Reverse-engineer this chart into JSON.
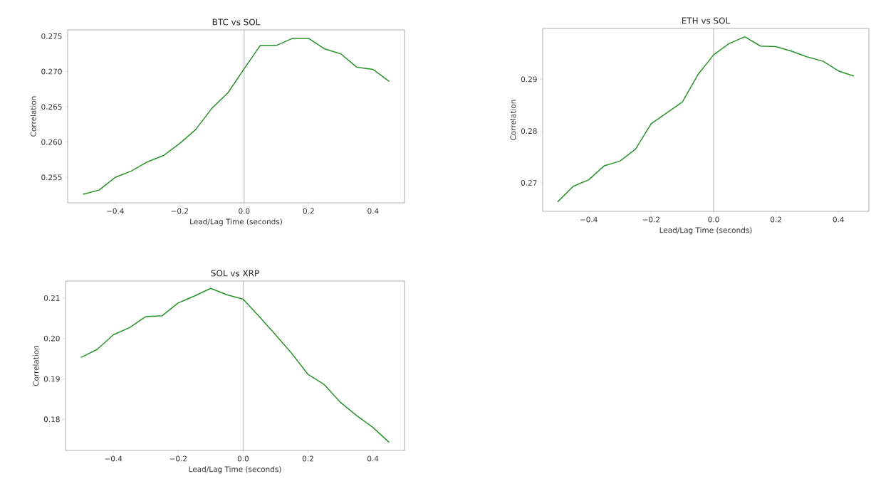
{
  "chart_data": [
    {
      "type": "line",
      "title": "BTC vs SOL",
      "xlabel": "Lead/Lag Time (seconds)",
      "ylabel": "Correlation",
      "x": [
        -0.5,
        -0.45,
        -0.4,
        -0.35,
        -0.3,
        -0.25,
        -0.2,
        -0.15,
        -0.1,
        -0.05,
        0.0,
        0.05,
        0.1,
        0.15,
        0.2,
        0.25,
        0.3,
        0.35,
        0.4,
        0.45
      ],
      "series": [
        {
          "color": "#279427",
          "values": [
            0.2526,
            0.2532,
            0.255,
            0.2559,
            0.2572,
            0.2581,
            0.2598,
            0.2618,
            0.2648,
            0.267,
            0.2704,
            0.2737,
            0.2737,
            0.2747,
            0.2747,
            0.2732,
            0.2725,
            0.2706,
            0.2703,
            0.2686
          ]
        }
      ],
      "xlim": [
        -0.5475,
        0.4975
      ],
      "ylim": [
        0.2514,
        0.2759
      ],
      "xticks": [
        {
          "value": -0.4,
          "label": "−0.4"
        },
        {
          "value": -0.2,
          "label": "−0.2"
        },
        {
          "value": 0,
          "label": "0.0"
        },
        {
          "value": 0.2,
          "label": "0.2"
        },
        {
          "value": 0.4,
          "label": "0.4"
        }
      ],
      "yticks": [
        0.255,
        {
          "value": 0.26,
          "label": "0.260"
        },
        0.265,
        {
          "value": 0.27,
          "label": "0.270"
        },
        0.275
      ],
      "ref_lines": [
        {
          "axis": "x",
          "value": 0,
          "color": "#808080"
        }
      ]
    },
    {
      "type": "line",
      "title": "ETH vs SOL",
      "xlabel": "Lead/Lag Time (seconds)",
      "ylabel": "Correlation",
      "x": [
        -0.5,
        -0.45,
        -0.4,
        -0.35,
        -0.3,
        -0.25,
        -0.2,
        -0.15,
        -0.1,
        -0.05,
        0.0,
        0.05,
        0.1,
        0.15,
        0.2,
        0.25,
        0.3,
        0.35,
        0.4,
        0.45
      ],
      "series": [
        {
          "color": "#279427",
          "values": [
            0.2663,
            0.2693,
            0.2706,
            0.2733,
            0.2742,
            0.2765,
            0.2814,
            0.2835,
            0.2856,
            0.2909,
            0.2947,
            0.2969,
            0.2982,
            0.2964,
            0.2963,
            0.2954,
            0.2943,
            0.2935,
            0.2916,
            0.2906
          ]
        }
      ],
      "xlim": [
        -0.5475,
        0.4975
      ],
      "ylim": [
        0.2645,
        0.2998
      ],
      "xticks": [
        {
          "value": -0.4,
          "label": "−0.4"
        },
        {
          "value": -0.2,
          "label": "−0.2"
        },
        {
          "value": 0,
          "label": "0.0"
        },
        {
          "value": 0.2,
          "label": "0.2"
        },
        {
          "value": 0.4,
          "label": "0.4"
        }
      ],
      "yticks": [
        0.27,
        0.28,
        0.29
      ],
      "ref_lines": [
        {
          "axis": "x",
          "value": 0,
          "color": "#808080"
        }
      ]
    },
    {
      "type": "line",
      "title": "SOL vs XRP",
      "xlabel": "Lead/Lag Time (seconds)",
      "ylabel": "Correlation",
      "x": [
        -0.5,
        -0.45,
        -0.4,
        -0.35,
        -0.3,
        -0.25,
        -0.2,
        -0.15,
        -0.1,
        -0.05,
        0.0,
        0.05,
        0.1,
        0.15,
        0.2,
        0.25,
        0.3,
        0.35,
        0.4,
        0.45
      ],
      "series": [
        {
          "color": "#279427",
          "values": [
            0.1953,
            0.1973,
            0.2009,
            0.2027,
            0.2054,
            0.2056,
            0.2088,
            0.2105,
            0.2124,
            0.2108,
            0.2097,
            0.2054,
            0.2009,
            0.1963,
            0.1911,
            0.1886,
            0.1842,
            0.1809,
            0.178,
            0.1743
          ]
        }
      ],
      "xlim": [
        -0.5475,
        0.4975
      ],
      "ylim": [
        0.1723,
        0.2142
      ],
      "xticks": [
        {
          "value": -0.4,
          "label": "−0.4"
        },
        {
          "value": -0.2,
          "label": "−0.2"
        },
        {
          "value": 0,
          "label": "0.0"
        },
        {
          "value": 0.2,
          "label": "0.2"
        },
        {
          "value": 0.4,
          "label": "0.4"
        }
      ],
      "yticks": [
        0.18,
        0.19,
        {
          "value": 0.2,
          "label": "0.20"
        },
        0.21
      ],
      "ref_lines": [
        {
          "axis": "x",
          "value": 0,
          "color": "#808080"
        }
      ]
    }
  ]
}
